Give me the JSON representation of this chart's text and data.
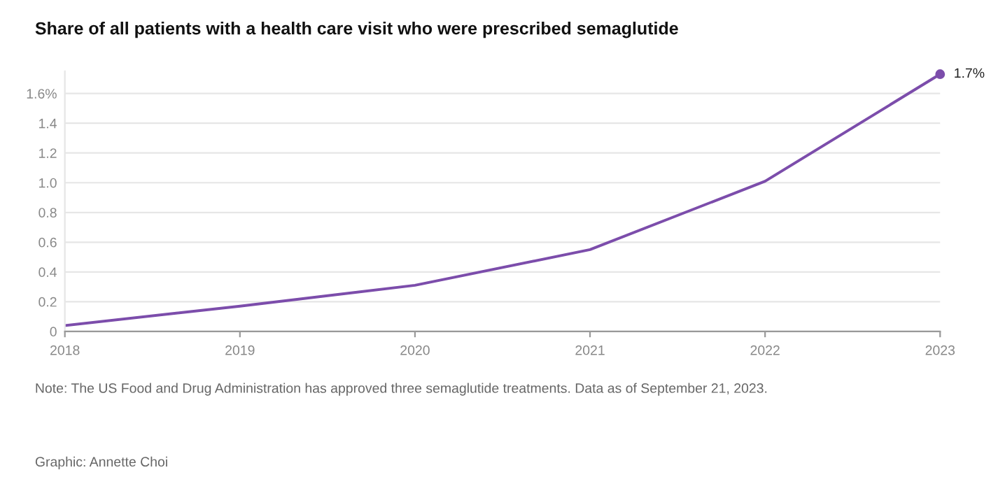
{
  "chart_data": {
    "type": "line",
    "title": "Share of all patients with a health care visit who were prescribed semaglutide",
    "x": [
      2018,
      2019,
      2020,
      2021,
      2022,
      2023
    ],
    "series": [
      {
        "color": "#7c4dab",
        "values": [
          0.04,
          0.17,
          0.31,
          0.55,
          1.01,
          1.73
        ],
        "value_labels": [
          null,
          null,
          null,
          null,
          null,
          "1.7%"
        ]
      }
    ],
    "xlim": [
      2018,
      2023
    ],
    "xticks": [
      2018,
      2019,
      2020,
      2021,
      2022,
      2023
    ],
    "ylim": [
      0,
      1.75
    ],
    "yticks": [
      0,
      0.2,
      0.4,
      0.6,
      0.8,
      {
        "value": 1.0,
        "label": "1.0"
      },
      1.2,
      1.4,
      {
        "value": 1.6,
        "label": "1.6%"
      }
    ],
    "grid": "y",
    "legend": false,
    "marker": "none",
    "line_style": "solid",
    "annotations": [
      "Note: The US Food and Drug Administration has approved three semaglutide treatments. Data as of September 21, 2023.",
      "Graphic: Annette Choi"
    ]
  }
}
